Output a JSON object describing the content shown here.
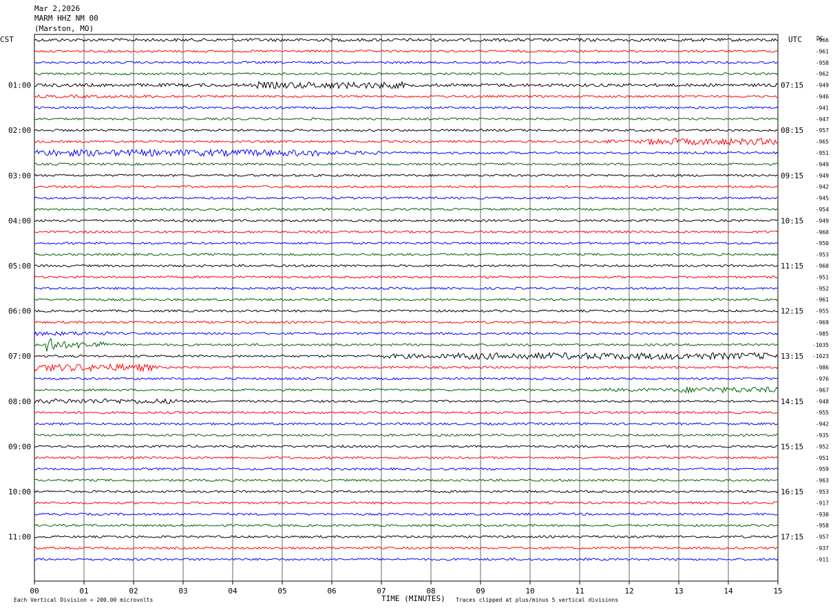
{
  "header": {
    "date": "Mar 2,2026",
    "station": "MARM HHZ NM 00",
    "location": "(Marston, MO)"
  },
  "left_tz_label": "CST",
  "right_tz_label": "UTC",
  "dc_label": "DC",
  "footer": {
    "scale_note": "Each Vertical Division =  200.00 microvolts",
    "xlabel": "TIME (MINUTES)",
    "clip_note": "Traces clipped at plus/minus 5 vertical divisions"
  },
  "colors": {
    "cycle": [
      "#000000",
      "#ff0000",
      "#0000ff",
      "#006000"
    ],
    "grid": "#000000"
  },
  "chart_data": {
    "type": "line",
    "subtype": "helicorder",
    "xlabel": "TIME (MINUTES)",
    "xlim": [
      0,
      15
    ],
    "x_ticks": [
      "00",
      "01",
      "02",
      "03",
      "04",
      "05",
      "06",
      "07",
      "08",
      "09",
      "10",
      "11",
      "12",
      "13",
      "14",
      "15"
    ],
    "rows_per_hour": 4,
    "minutes_per_row": 15,
    "left_hour_labels": [
      "01:00",
      "02:00",
      "03:00",
      "04:00",
      "05:00",
      "06:00",
      "07:00",
      "08:00",
      "09:00",
      "10:00",
      "11:00"
    ],
    "right_hour_labels": [
      "07:15",
      "08:15",
      "09:15",
      "10:15",
      "11:15",
      "12:15",
      "13:15",
      "14:15",
      "15:15",
      "16:15",
      "17:15"
    ],
    "hour_label_rows": [
      4,
      8,
      12,
      16,
      20,
      24,
      28,
      32,
      36,
      40,
      44
    ],
    "dc_offsets": [
      "-966",
      "-961",
      "-958",
      "-962",
      "-949",
      "-946",
      "-941",
      "-947",
      "-957",
      "-965",
      "-951",
      "-949",
      "-949",
      "-942",
      "-945",
      "-954",
      "-949",
      "-960",
      "-950",
      "-953",
      "-960",
      "-951",
      "-952",
      "-961",
      "-955",
      "-969",
      "-985",
      "-1035",
      "-1023",
      "-986",
      "-976",
      "-967",
      "-948",
      "-955",
      "-942",
      "-935",
      "-952",
      "-951",
      "-959",
      "-963",
      "-953",
      "-917",
      "-930",
      "-958",
      "-957",
      "-937",
      "-911"
    ],
    "activity": [
      {
        "row": 0,
        "segments": [
          [
            0,
            15,
            1.4
          ]
        ]
      },
      {
        "row": 4,
        "segments": [
          [
            0,
            4.5,
            1.5
          ],
          [
            4.5,
            7.5,
            3.0
          ],
          [
            7.5,
            15,
            1.4
          ]
        ]
      },
      {
        "row": 5,
        "segments": [
          [
            0,
            3,
            1.4
          ]
        ]
      },
      {
        "row": 9,
        "segments": [
          [
            11.5,
            12.3,
            1.6
          ],
          [
            12.3,
            15,
            3.0
          ]
        ]
      },
      {
        "row": 10,
        "segments": [
          [
            0,
            6,
            3.0
          ],
          [
            6,
            7,
            1.6
          ]
        ]
      },
      {
        "row": 26,
        "segments": [
          [
            0,
            1.5,
            1.8
          ]
        ]
      },
      {
        "row": 27,
        "segments": [
          [
            0.2,
            0.4,
            10.0
          ],
          [
            0.4,
            1.5,
            3.0
          ]
        ]
      },
      {
        "row": 28,
        "segments": [
          [
            7,
            8.5,
            2.0
          ],
          [
            8.5,
            15,
            3.0
          ]
        ]
      },
      {
        "row": 29,
        "segments": [
          [
            0,
            2.5,
            3.2
          ]
        ]
      },
      {
        "row": 31,
        "segments": [
          [
            11.5,
            13,
            1.6
          ],
          [
            13,
            15,
            2.6
          ]
        ]
      },
      {
        "row": 32,
        "segments": [
          [
            0,
            3,
            2.2
          ]
        ]
      }
    ]
  }
}
